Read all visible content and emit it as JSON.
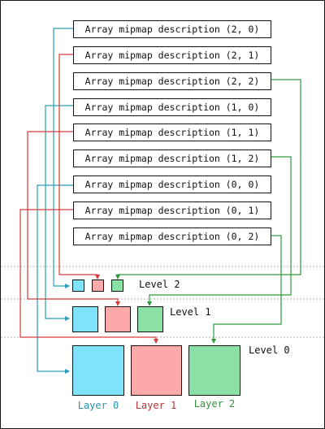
{
  "descriptions": [
    "Array mipmap description (2, 0)",
    "Array mipmap description (2, 1)",
    "Array mipmap description (2, 2)",
    "Array mipmap description (1, 0)",
    "Array mipmap description (1, 1)",
    "Array mipmap description (1, 2)",
    "Array mipmap description (0, 0)",
    "Array mipmap description (0, 1)",
    "Array mipmap description (0, 2)"
  ],
  "levels": [
    "Level 2",
    "Level 1",
    "Level 0"
  ],
  "layers": [
    "Layer 0",
    "Layer 1",
    "Layer 2"
  ],
  "colors": {
    "layer0_fill": "#7fe4fb",
    "layer1_fill": "#fda9aa",
    "layer2_fill": "#8be0a6",
    "layer0_line": "#2a9cb8",
    "layer1_line": "#d43a3a",
    "layer2_line": "#2f9a3e",
    "layer0_text": "#2a93b0",
    "layer1_text": "#b8332f",
    "layer2_text": "#2f8f3c",
    "divider": "#b0b0b0"
  }
}
